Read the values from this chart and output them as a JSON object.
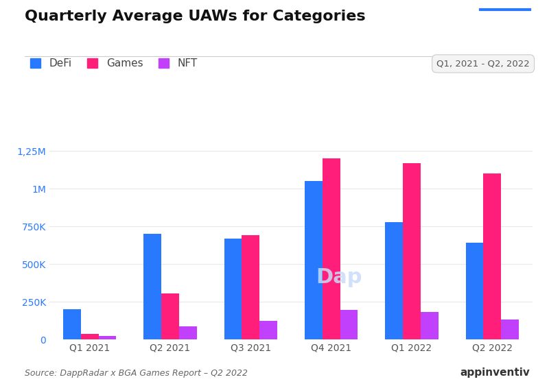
{
  "title": "Quarterly Average UAWs for Categories",
  "date_range_label": "Q1, 2021 - Q2, 2022",
  "source_text": "Source: DappRadar x BGA Games Report – Q2 2022",
  "categories": [
    "Q1 2021",
    "Q2 2021",
    "Q3 2021",
    "Q4 2021",
    "Q1 2022",
    "Q2 2022"
  ],
  "defi": [
    200000,
    700000,
    670000,
    1050000,
    780000,
    640000
  ],
  "games": [
    40000,
    305000,
    690000,
    1200000,
    1170000,
    1100000
  ],
  "nft": [
    25000,
    90000,
    125000,
    195000,
    185000,
    135000
  ],
  "defi_color": "#2979FF",
  "games_color": "#FF1F7A",
  "nft_color": "#C040FB",
  "background_color": "#FFFFFF",
  "title_fontsize": 16,
  "tick_color": "#2979FF",
  "ytick_labels": [
    "0",
    "250K",
    "500K",
    "750K",
    "1M",
    "1,25M"
  ],
  "ytick_values": [
    0,
    250000,
    500000,
    750000,
    1000000,
    1250000
  ],
  "ylim": [
    0,
    1380000
  ],
  "bar_width": 0.22,
  "grid_color": "#E8E8E8",
  "watermark_text": "Dap",
  "watermark_color": "#C8DCF8"
}
